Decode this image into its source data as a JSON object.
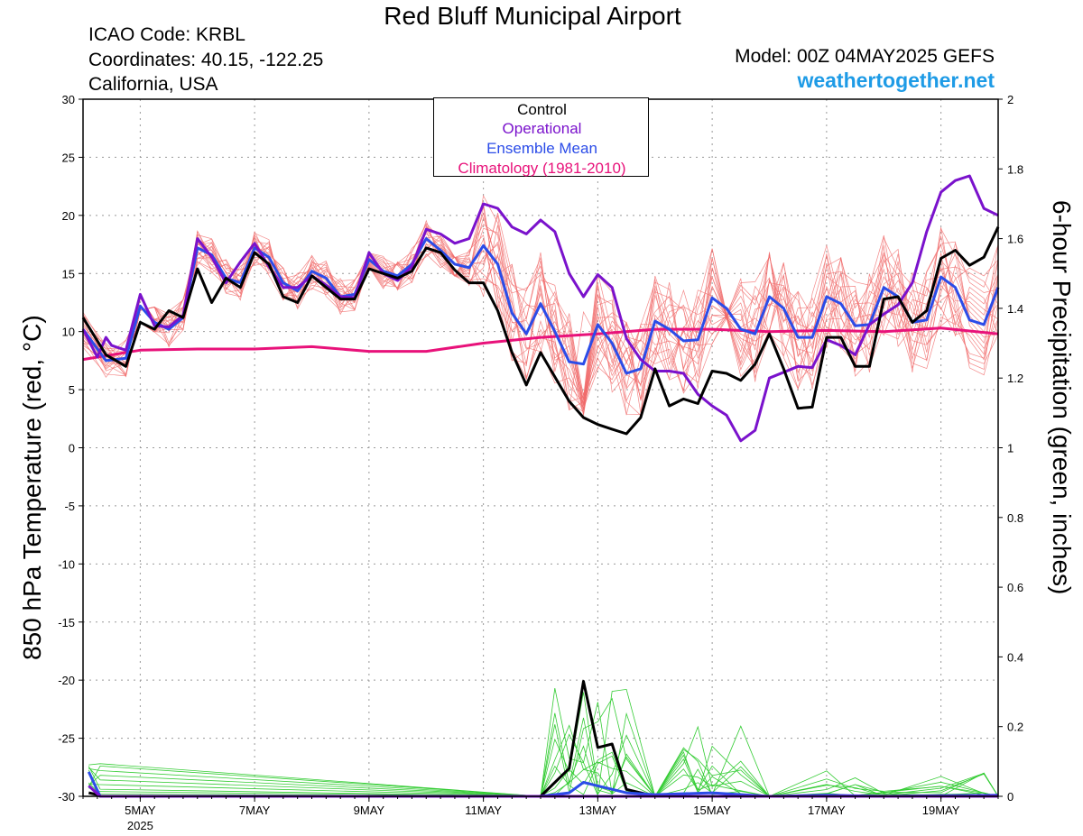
{
  "header": {
    "title": "Red Bluff Municipal Airport",
    "icao": "ICAO Code: KRBL",
    "coordinates": "Coordinates: 40.15, -122.25",
    "location": "California, USA",
    "model": "Model: 00Z 04MAY2025 GEFS",
    "site": "weathertogether.net"
  },
  "legend": {
    "control": "Control",
    "operational": "Operational",
    "ensemble_mean": "Ensemble Mean",
    "climatology": "Climatology (1981-2010)"
  },
  "colors": {
    "control": "#000000",
    "operational": "#7a12cc",
    "ensemble_mean": "#2b4ce8",
    "climatology": "#e8127a",
    "members_temp": "#f06a6a",
    "members_precip": "#33cc33",
    "site": "#1e9be6"
  },
  "chart_data": {
    "type": "line",
    "xlabel": "",
    "ylabel": "850 hPa Temperature (red, °C)",
    "ylabel_right": "6-hour Precipitation (green, inches)",
    "xlim_days": [
      4.0,
      20.0
    ],
    "ylim": [
      -30,
      30
    ],
    "ylim_right": [
      0,
      2
    ],
    "yticks": [
      30,
      25,
      20,
      15,
      10,
      5,
      0,
      -5,
      -10,
      -15,
      -20,
      -25,
      -30
    ],
    "yticks_right": [
      "2",
      "1.8",
      "1.6",
      "1.4",
      "1.2",
      "1",
      "0.8",
      "0.6",
      "0.4",
      "0.2",
      "0"
    ],
    "xticks": [
      {
        "day": 5,
        "label": "5MAY",
        "sub": "2025"
      },
      {
        "day": 7,
        "label": "7MAY",
        "sub": ""
      },
      {
        "day": 9,
        "label": "9MAY",
        "sub": ""
      },
      {
        "day": 11,
        "label": "11MAY",
        "sub": ""
      },
      {
        "day": 13,
        "label": "13MAY",
        "sub": ""
      },
      {
        "day": 15,
        "label": "15MAY",
        "sub": ""
      },
      {
        "day": 17,
        "label": "17MAY",
        "sub": ""
      },
      {
        "day": 19,
        "label": "19MAY",
        "sub": ""
      }
    ],
    "grid": true,
    "series": [
      {
        "name": "Control",
        "day": [
          4.0,
          4.4,
          4.75,
          5.0,
          5.25,
          5.5,
          5.75,
          6.0,
          6.25,
          6.5,
          6.75,
          7.0,
          7.25,
          7.5,
          7.75,
          8.0,
          8.25,
          8.5,
          8.75,
          9.0,
          9.25,
          9.5,
          9.75,
          10.0,
          10.25,
          10.5,
          10.75,
          11.0,
          11.25,
          11.5,
          11.75,
          12.0,
          12.25,
          12.5,
          12.75,
          13.0,
          13.25,
          13.5,
          13.75,
          14.0,
          14.25,
          14.5,
          14.75,
          15.0,
          15.25,
          15.5,
          15.75,
          16.0,
          16.25,
          16.5,
          16.75,
          17.0,
          17.25,
          17.5,
          17.75,
          18.0,
          18.25,
          18.5,
          18.75,
          19.0,
          19.25,
          19.5,
          19.75,
          20.0
        ],
        "values": [
          11.2,
          8.0,
          7.0,
          10.8,
          10.2,
          11.8,
          11.2,
          15.4,
          12.5,
          14.6,
          13.8,
          16.8,
          15.8,
          13.0,
          12.5,
          14.8,
          13.8,
          12.8,
          12.8,
          15.4,
          15.0,
          14.6,
          15.2,
          17.2,
          16.8,
          15.3,
          14.2,
          14.2,
          11.8,
          8.2,
          5.4,
          8.2,
          6.1,
          4.0,
          2.6,
          2.0,
          1.6,
          1.2,
          2.6,
          6.8,
          3.6,
          4.2,
          3.8,
          6.6,
          6.4,
          5.8,
          7.2,
          9.8,
          6.8,
          3.4,
          3.5,
          9.5,
          9.5,
          7.0,
          7.0,
          12.8,
          13.0,
          10.8,
          11.8,
          16.3,
          17.0,
          15.7,
          16.4,
          19.0
        ]
      },
      {
        "name": "Operational",
        "day": [
          4.0,
          4.25,
          4.4,
          4.5,
          4.75,
          5.0,
          5.25,
          5.5,
          5.75,
          6.0,
          6.25,
          6.5,
          6.75,
          7.0,
          7.25,
          7.5,
          7.75,
          8.0,
          8.25,
          8.5,
          8.75,
          9.0,
          9.25,
          9.5,
          9.75,
          10.0,
          10.25,
          10.5,
          10.75,
          11.0,
          11.25,
          11.5,
          11.75,
          12.0,
          12.25,
          12.5,
          12.75,
          13.0,
          13.25,
          13.5,
          13.75,
          14.0,
          14.25,
          14.5,
          14.75,
          15.0,
          15.25,
          15.5,
          15.75,
          16.0,
          16.25,
          16.5,
          16.75,
          17.0,
          17.25,
          17.5,
          17.75,
          18.0,
          18.25,
          18.5,
          18.75,
          19.0,
          19.25,
          19.5,
          19.75,
          20.0
        ],
        "values": [
          10.2,
          7.8,
          9.5,
          8.8,
          8.4,
          13.2,
          10.5,
          10.4,
          11.4,
          18.0,
          16.4,
          14.2,
          16.0,
          17.6,
          15.6,
          13.8,
          13.8,
          14.8,
          14.0,
          13.0,
          12.9,
          16.8,
          15.0,
          14.4,
          15.6,
          18.8,
          18.4,
          17.6,
          18.0,
          21.0,
          20.6,
          19.0,
          18.4,
          19.6,
          18.6,
          15.0,
          13.0,
          14.9,
          13.8,
          9.4,
          7.6,
          6.6,
          6.6,
          6.4,
          4.6,
          3.6,
          2.8,
          0.6,
          1.5,
          6.0,
          6.5,
          7.0,
          6.9,
          9.3,
          8.8,
          8.0,
          10.6,
          11.5,
          12.3,
          14.2,
          18.6,
          22.0,
          23.0,
          23.4,
          20.6,
          20.0
        ]
      },
      {
        "name": "Ensemble Mean",
        "day": [
          4.0,
          4.4,
          4.75,
          5.0,
          5.25,
          5.5,
          5.75,
          6.0,
          6.25,
          6.5,
          6.75,
          7.0,
          7.25,
          7.5,
          7.75,
          8.0,
          8.25,
          8.5,
          8.75,
          9.0,
          9.25,
          9.5,
          9.75,
          10.0,
          10.25,
          10.5,
          10.75,
          11.0,
          11.25,
          11.5,
          11.75,
          12.0,
          12.25,
          12.5,
          12.75,
          13.0,
          13.25,
          13.5,
          13.75,
          14.0,
          14.25,
          14.5,
          14.75,
          15.0,
          15.25,
          15.5,
          15.75,
          16.0,
          16.25,
          16.5,
          16.75,
          17.0,
          17.25,
          17.5,
          17.75,
          18.0,
          18.25,
          18.5,
          18.75,
          19.0,
          19.25,
          19.5,
          19.75,
          20.0
        ],
        "values": [
          10.2,
          7.5,
          7.7,
          12.2,
          10.8,
          10.2,
          11.2,
          17.2,
          16.6,
          14.6,
          14.2,
          17.2,
          16.4,
          14.2,
          13.5,
          15.2,
          14.6,
          13.0,
          13.2,
          16.2,
          15.2,
          14.8,
          15.8,
          18.0,
          17.0,
          15.8,
          15.5,
          17.4,
          15.8,
          11.6,
          9.8,
          12.4,
          10.0,
          7.4,
          7.2,
          10.6,
          9.0,
          6.4,
          6.8,
          10.9,
          10.2,
          9.2,
          9.3,
          12.9,
          12.0,
          10.2,
          9.8,
          13.0,
          12.0,
          9.5,
          9.5,
          13.0,
          12.4,
          10.5,
          10.6,
          13.8,
          13.0,
          10.8,
          11.0,
          14.7,
          13.8,
          11.0,
          10.6,
          13.8
        ]
      },
      {
        "name": "Climatology (1981-2010)",
        "day": [
          4.0,
          5.0,
          6.0,
          7.0,
          8.0,
          9.0,
          10.0,
          11.0,
          12.0,
          13.0,
          14.0,
          15.0,
          16.0,
          17.0,
          18.0,
          19.0,
          20.0
        ],
        "values": [
          7.6,
          8.4,
          8.5,
          8.5,
          8.7,
          8.3,
          8.3,
          9.0,
          9.5,
          9.8,
          10.2,
          10.2,
          10.0,
          10.1,
          10.0,
          10.3,
          9.8
        ]
      }
    ],
    "precip_series": [
      {
        "name": "Control",
        "day": [
          4.1,
          4.25,
          4.3,
          5.0,
          12.0,
          12.5,
          12.75,
          13.0,
          13.25,
          13.5,
          13.75,
          14.0,
          16.0,
          17.0,
          20.0
        ],
        "values": [
          0.01,
          0.005,
          0.0,
          0.0,
          0.0,
          0.08,
          0.33,
          0.14,
          0.15,
          0.02,
          0.01,
          0.0,
          0.0,
          0.0,
          0.0
        ]
      },
      {
        "name": "Ensemble Mean",
        "day": [
          4.1,
          4.3,
          5.0,
          12.0,
          12.5,
          12.75,
          13.0,
          13.5,
          14.0,
          15.0,
          16.0,
          17.0,
          18.0,
          20.0
        ],
        "values": [
          0.07,
          0.0,
          0.0,
          0.0,
          0.01,
          0.04,
          0.03,
          0.01,
          0.005,
          0.01,
          0.0,
          0.003,
          0.0,
          0.003
        ]
      },
      {
        "name": "Operational",
        "day": [
          4.1,
          4.3,
          5.0,
          20.0
        ],
        "values": [
          0.03,
          0.0,
          0.0,
          0.0
        ]
      }
    ],
    "members_note": ""
  }
}
